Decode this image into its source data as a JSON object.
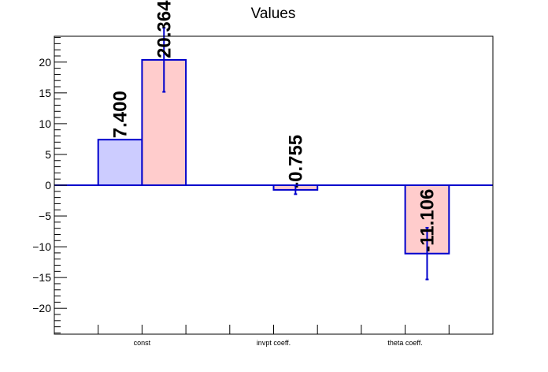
{
  "chart_data": {
    "type": "bar",
    "title": "Values",
    "categories": [
      "const",
      "invpt coeff.",
      "theta coeff."
    ],
    "ylim": [
      -24.2,
      24.2
    ],
    "yticks": [
      -20,
      -15,
      -10,
      -5,
      0,
      5,
      10,
      15,
      20
    ],
    "ytick_labels": [
      "−20",
      "−15",
      "−10",
      "−5",
      "0",
      "5",
      "10",
      "15",
      "20"
    ],
    "grid": false,
    "series": [
      {
        "color": "#ccccff",
        "edge": "#0000cc",
        "bars": [
          {
            "category": 0,
            "value": 7.4,
            "label": "7.400",
            "err": null
          }
        ]
      },
      {
        "color": "#ffcccc",
        "edge": "#0000cc",
        "bars": [
          {
            "category": 0,
            "value": 20.364,
            "label": "20.364",
            "err": 5.2
          },
          {
            "category": 1,
            "value": -0.755,
            "label": "-0.755",
            "err": 0.7
          },
          {
            "category": 2,
            "value": -11.106,
            "label": "-11.106",
            "err": 4.2
          }
        ]
      }
    ]
  }
}
